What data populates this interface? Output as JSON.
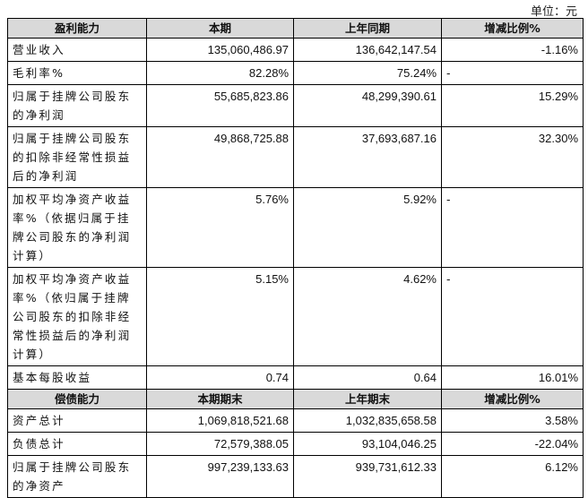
{
  "unit": "单位：元",
  "table": {
    "sections": [
      {
        "header": [
          "盈利能力",
          "本期",
          "上年同期",
          "增减比例%"
        ],
        "rows": [
          [
            "营业收入",
            "135,060,486.97",
            "136,642,147.54",
            "-1.16%"
          ],
          [
            "毛利率%",
            "82.28%",
            "75.24%",
            "-"
          ],
          [
            "归属于挂牌公司股东的净利润",
            "55,685,823.86",
            "48,299,390.61",
            "15.29%"
          ],
          [
            "归属于挂牌公司股东的扣除非经常性损益后的净利润",
            "49,868,725.88",
            "37,693,687.16",
            "32.30%"
          ],
          [
            "加权平均净资产收益率%（依据归属于挂牌公司股东的净利润计算）",
            "5.76%",
            "5.92%",
            "-"
          ],
          [
            "加权平均净资产收益率%（依归属于挂牌公司股东的扣除非经常性损益后的净利润计算）",
            "5.15%",
            "4.62%",
            "-"
          ],
          [
            "基本每股收益",
            "0.74",
            "0.64",
            "16.01%"
          ]
        ]
      },
      {
        "header": [
          "偿债能力",
          "本期期末",
          "上年期末",
          "增减比例%"
        ],
        "rows": [
          [
            "资产总计",
            "1,069,818,521.68",
            "1,032,835,658.58",
            "3.58%"
          ],
          [
            "负债总计",
            "72,579,388.05",
            "93,104,046.25",
            "-22.04%"
          ],
          [
            "归属于挂牌公司股东的净资产",
            "997,239,133.63",
            "939,731,612.33",
            "6.12%"
          ]
        ]
      }
    ]
  }
}
